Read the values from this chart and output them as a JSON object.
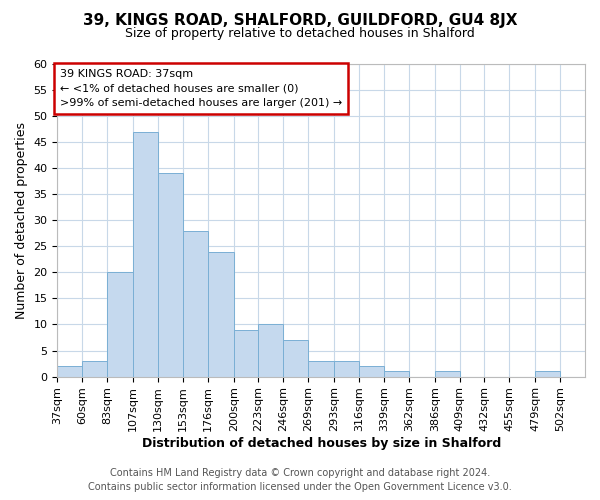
{
  "title1": "39, KINGS ROAD, SHALFORD, GUILDFORD, GU4 8JX",
  "title2": "Size of property relative to detached houses in Shalford",
  "xlabel": "Distribution of detached houses by size in Shalford",
  "ylabel": "Number of detached properties",
  "footer1": "Contains HM Land Registry data © Crown copyright and database right 2024.",
  "footer2": "Contains public sector information licensed under the Open Government Licence v3.0.",
  "bin_labels": [
    "37sqm",
    "60sqm",
    "83sqm",
    "107sqm",
    "130sqm",
    "153sqm",
    "176sqm",
    "200sqm",
    "223sqm",
    "246sqm",
    "269sqm",
    "293sqm",
    "316sqm",
    "339sqm",
    "362sqm",
    "386sqm",
    "409sqm",
    "432sqm",
    "455sqm",
    "479sqm",
    "502sqm"
  ],
  "bin_edges": [
    37,
    60,
    83,
    107,
    130,
    153,
    176,
    200,
    223,
    246,
    269,
    293,
    316,
    339,
    362,
    386,
    409,
    432,
    455,
    479,
    502,
    525
  ],
  "counts": [
    2,
    3,
    20,
    47,
    39,
    28,
    24,
    9,
    10,
    7,
    3,
    3,
    2,
    1,
    0,
    1,
    0,
    0,
    0,
    1,
    0
  ],
  "bar_color": "#c5d9ee",
  "bar_edge_color": "#7aafd4",
  "grid_color": "#c8d8e8",
  "bg_color": "#ffffff",
  "figure_bg": "#ffffff",
  "annotation_box_text": "39 KINGS ROAD: 37sqm\n← <1% of detached houses are smaller (0)\n>99% of semi-detached houses are larger (201) →",
  "annotation_box_facecolor": "#ffffff",
  "annotation_box_edgecolor": "#cc0000",
  "ylim": [
    0,
    60
  ],
  "yticks": [
    0,
    5,
    10,
    15,
    20,
    25,
    30,
    35,
    40,
    45,
    50,
    55,
    60
  ],
  "title1_fontsize": 11,
  "title2_fontsize": 9,
  "xlabel_fontsize": 9,
  "ylabel_fontsize": 9,
  "tick_fontsize": 8,
  "footer_fontsize": 7
}
